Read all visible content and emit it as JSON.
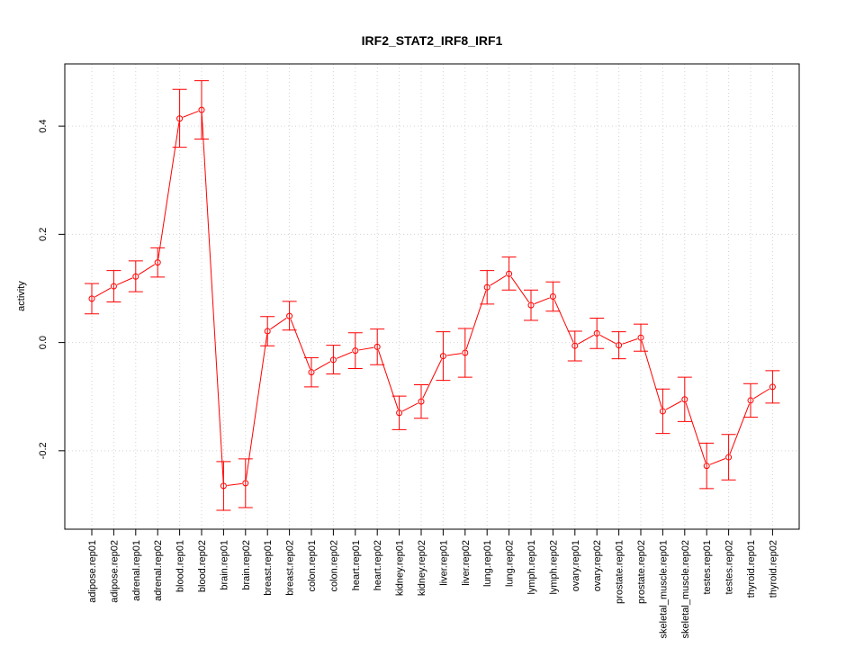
{
  "chart_data": {
    "type": "line",
    "title": "IRF2_STAT2_IRF8_IRF1",
    "xlabel": "",
    "ylabel": "activity",
    "ylim": [
      -0.345,
      0.515
    ],
    "yticks": [
      -0.2,
      0.0,
      0.2,
      0.4
    ],
    "ytick_labels": [
      "-0.2",
      "0.0",
      "0.2",
      "0.4"
    ],
    "grid": true,
    "error_bars": true,
    "colors": {
      "series": "#ff0000",
      "grid": "#d3d3d3",
      "axis": "#000000"
    },
    "categories": [
      "adipose.rep01",
      "adipose.rep02",
      "adrenal.rep01",
      "adrenal.rep02",
      "blood.rep01",
      "blood.rep02",
      "brain.rep01",
      "brain.rep02",
      "breast.rep01",
      "breast.rep02",
      "colon.rep01",
      "colon.rep02",
      "heart.rep01",
      "heart.rep02",
      "kidney.rep01",
      "kidney.rep02",
      "liver.rep01",
      "liver.rep02",
      "lung.rep01",
      "lung.rep02",
      "lymph.rep01",
      "lymph.rep02",
      "ovary.rep01",
      "ovary.rep02",
      "prostate.rep01",
      "prostate.rep02",
      "skeletal_muscle.rep01",
      "skeletal_muscle.rep02",
      "testes.rep01",
      "testes.rep02",
      "thyroid.rep01",
      "thyroid.rep02"
    ],
    "series": [
      {
        "values": [
          0.081,
          0.104,
          0.122,
          0.148,
          0.414,
          0.43,
          -0.265,
          -0.26,
          0.021,
          0.049,
          -0.055,
          -0.032,
          -0.015,
          -0.008,
          -0.13,
          -0.109,
          -0.025,
          -0.019,
          0.102,
          0.127,
          0.069,
          0.085,
          -0.006,
          0.017,
          -0.005,
          0.009,
          -0.127,
          -0.105,
          -0.228,
          -0.212,
          -0.107,
          -0.082
        ],
        "lower": [
          0.053,
          0.075,
          0.094,
          0.121,
          0.361,
          0.376,
          -0.31,
          -0.305,
          -0.006,
          0.023,
          -0.082,
          -0.058,
          -0.048,
          -0.041,
          -0.161,
          -0.14,
          -0.07,
          -0.064,
          0.071,
          0.097,
          0.041,
          0.058,
          -0.034,
          -0.011,
          -0.03,
          -0.016,
          -0.168,
          -0.146,
          -0.27,
          -0.254,
          -0.138,
          -0.112
        ],
        "upper": [
          0.109,
          0.133,
          0.151,
          0.175,
          0.468,
          0.484,
          -0.22,
          -0.215,
          0.048,
          0.076,
          -0.028,
          -0.005,
          0.018,
          0.025,
          -0.099,
          -0.078,
          0.02,
          0.026,
          0.133,
          0.158,
          0.097,
          0.112,
          0.021,
          0.045,
          0.02,
          0.034,
          -0.086,
          -0.064,
          -0.186,
          -0.17,
          -0.076,
          -0.052
        ]
      }
    ]
  }
}
